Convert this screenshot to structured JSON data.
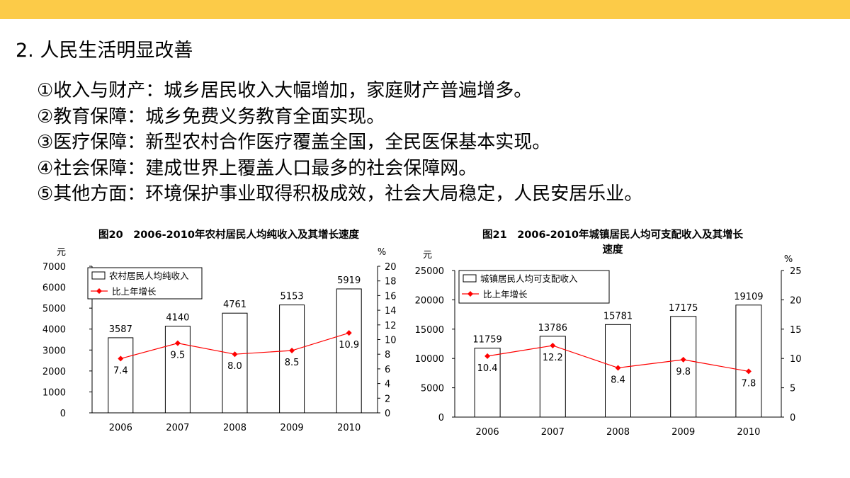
{
  "slide": {
    "title": "2. 人民生活明显改善",
    "points": [
      "①收入与财产：城乡居民收入大幅增加，家庭财产普遍增多。",
      "②教育保障：城乡免费义务教育全面实现。",
      "③医疗保障：新型农村合作医疗覆盖全国，全民医保基本实现。",
      "④社会保障：建成世界上覆盖人口最多的社会保障网。",
      "⑤其他方面：环境保护事业取得积极成效，社会大局稳定，人民安居乐业。"
    ]
  },
  "colors": {
    "topbar": "#FCCB48",
    "line": "#FF0000",
    "axis": "#000000"
  },
  "chart_data": [
    {
      "type": "bar",
      "title": "图20　2006-2010年农村居民人均纯收入及其增长速度",
      "categories": [
        "2006",
        "2007",
        "2008",
        "2009",
        "2010"
      ],
      "series": [
        {
          "name": "农村居民人均纯收入",
          "type": "bar",
          "axis": "left",
          "values": [
            3587,
            4140,
            4761,
            5153,
            5919
          ]
        },
        {
          "name": "比上年增长",
          "type": "line",
          "axis": "right",
          "values": [
            7.4,
            9.5,
            8.0,
            8.5,
            10.9
          ],
          "labels": [
            "7.4",
            "9.5",
            "8.0",
            "8.5",
            "10.9"
          ]
        }
      ],
      "ylabel_left": "元",
      "ylabel_right": "%",
      "ylim_left": [
        0,
        7000
      ],
      "yticks_left": [
        0,
        1000,
        2000,
        3000,
        4000,
        5000,
        6000,
        7000
      ],
      "ylim_right": [
        0,
        20
      ],
      "yticks_right": [
        0,
        2,
        4,
        6,
        8,
        10,
        12,
        14,
        16,
        18,
        20
      ],
      "legend": "top-left",
      "grid": false
    },
    {
      "type": "bar",
      "title": "图21　2006-2010年城镇居民人均可支配收入及其增长速度",
      "title_lines": [
        "图21　2006-2010年城镇居民人均可支配收入及其增长",
        "速度"
      ],
      "categories": [
        "2006",
        "2007",
        "2008",
        "2009",
        "2010"
      ],
      "series": [
        {
          "name": "城镇居民人均可支配收入",
          "type": "bar",
          "axis": "left",
          "values": [
            11759,
            13786,
            15781,
            17175,
            19109
          ]
        },
        {
          "name": "比上年增长",
          "type": "line",
          "axis": "right",
          "values": [
            10.4,
            12.2,
            8.4,
            9.8,
            7.8
          ],
          "labels": [
            "10.4",
            "12.2",
            "8.4",
            "9.8",
            "7.8"
          ]
        }
      ],
      "ylabel_left": "元",
      "ylabel_right": "%",
      "ylim_left": [
        0,
        25000
      ],
      "yticks_left": [
        0,
        5000,
        10000,
        15000,
        20000,
        25000
      ],
      "ylim_right": [
        0,
        25
      ],
      "yticks_right": [
        0,
        5,
        10,
        15,
        20,
        25
      ],
      "legend": "top-left",
      "grid": false
    }
  ]
}
